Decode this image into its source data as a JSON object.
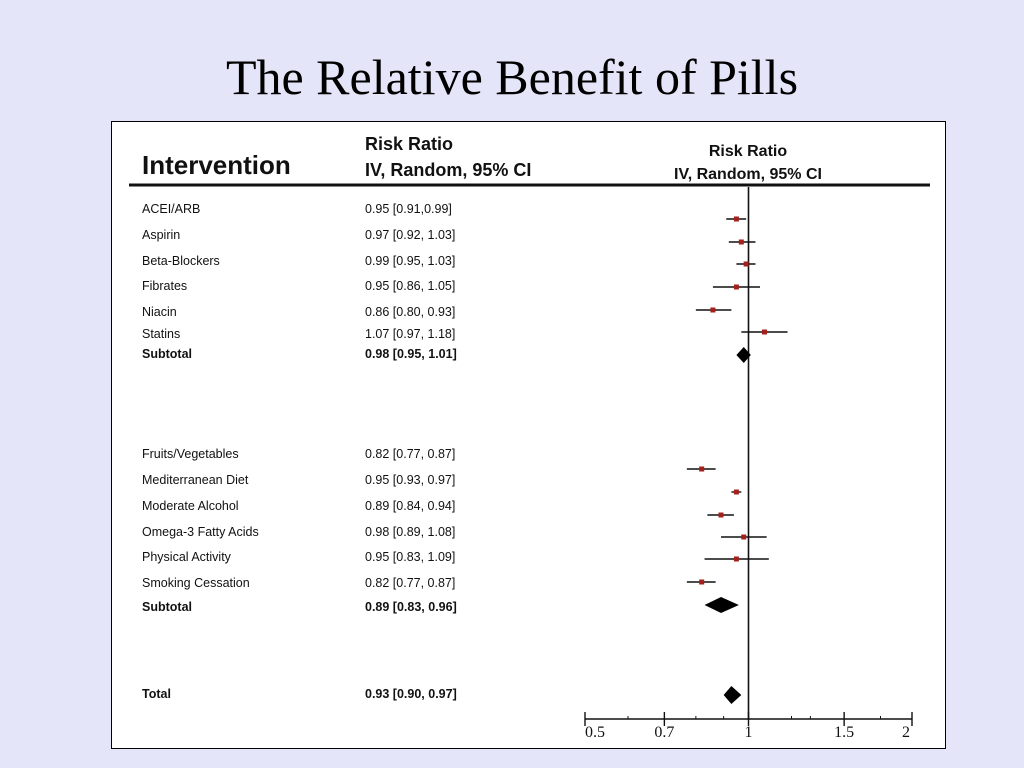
{
  "slide": {
    "title": "The Relative Benefit of Pills"
  },
  "table": {
    "intervention_header": "Intervention",
    "rr_header_line1": "Risk Ratio",
    "rr_header_line2": "IV, Random, 95% CI",
    "plot_header_line1": "Risk Ratio",
    "plot_header_line2": "IV, Random, 95% CI"
  },
  "chart_data": {
    "type": "forest",
    "xscale": "log",
    "xlim": [
      0.5,
      2
    ],
    "reference_line": 1,
    "x_ticks": [
      {
        "value": 0.5,
        "label": "0.5"
      },
      {
        "value": 0.7,
        "label": "0.7"
      },
      {
        "value": 1,
        "label": "1"
      },
      {
        "value": 1.5,
        "label": "1.5"
      },
      {
        "value": 2,
        "label": "2"
      }
    ],
    "rows": [
      {
        "label": "ACEI/ARB",
        "ci_text": "0.95 [0.91,0.99]",
        "rr": 0.95,
        "lower": 0.91,
        "upper": 0.99,
        "kind": "study"
      },
      {
        "label": "Aspirin",
        "ci_text": "0.97 [0.92, 1.03]",
        "rr": 0.97,
        "lower": 0.92,
        "upper": 1.03,
        "kind": "study"
      },
      {
        "label": "Beta-Blockers",
        "ci_text": "0.99 [0.95, 1.03]",
        "rr": 0.99,
        "lower": 0.95,
        "upper": 1.03,
        "kind": "study"
      },
      {
        "label": "Fibrates",
        "ci_text": "0.95 [0.86, 1.05]",
        "rr": 0.95,
        "lower": 0.86,
        "upper": 1.05,
        "kind": "study"
      },
      {
        "label": "Niacin",
        "ci_text": "0.86 [0.80, 0.93]",
        "rr": 0.86,
        "lower": 0.8,
        "upper": 0.93,
        "kind": "study"
      },
      {
        "label": "Statins",
        "ci_text": "1.07 [0.97, 1.18]",
        "rr": 1.07,
        "lower": 0.97,
        "upper": 1.18,
        "kind": "study"
      },
      {
        "label": "Subtotal",
        "ci_text": "0.98 [0.95, 1.01]",
        "rr": 0.98,
        "lower": 0.95,
        "upper": 1.01,
        "kind": "subtotal"
      },
      {
        "label": "Fruits/Vegetables",
        "ci_text": "0.82 [0.77, 0.87]",
        "rr": 0.82,
        "lower": 0.77,
        "upper": 0.87,
        "kind": "study"
      },
      {
        "label": "Mediterranean Diet",
        "ci_text": "0.95 [0.93, 0.97]",
        "rr": 0.95,
        "lower": 0.93,
        "upper": 0.97,
        "kind": "study"
      },
      {
        "label": "Moderate Alcohol",
        "ci_text": "0.89 [0.84, 0.94]",
        "rr": 0.89,
        "lower": 0.84,
        "upper": 0.94,
        "kind": "study"
      },
      {
        "label": "Omega-3 Fatty Acids",
        "ci_text": "0.98 [0.89, 1.08]",
        "rr": 0.98,
        "lower": 0.89,
        "upper": 1.08,
        "kind": "study"
      },
      {
        "label": "Physical Activity",
        "ci_text": "0.95 [0.83, 1.09]",
        "rr": 0.95,
        "lower": 0.83,
        "upper": 1.09,
        "kind": "study"
      },
      {
        "label": "Smoking Cessation",
        "ci_text": "0.82 [0.77, 0.87]",
        "rr": 0.82,
        "lower": 0.77,
        "upper": 0.87,
        "kind": "study"
      },
      {
        "label": "Subtotal",
        "ci_text": "0.89 [0.83, 0.96]",
        "rr": 0.89,
        "lower": 0.83,
        "upper": 0.96,
        "kind": "subtotal"
      },
      {
        "label": "Total",
        "ci_text": "0.93 [0.90, 0.97]",
        "rr": 0.93,
        "lower": 0.9,
        "upper": 0.97,
        "kind": "total"
      }
    ]
  },
  "colors": {
    "background": "#e4e5f8",
    "marker": "#a3201b",
    "line": "#111111"
  }
}
